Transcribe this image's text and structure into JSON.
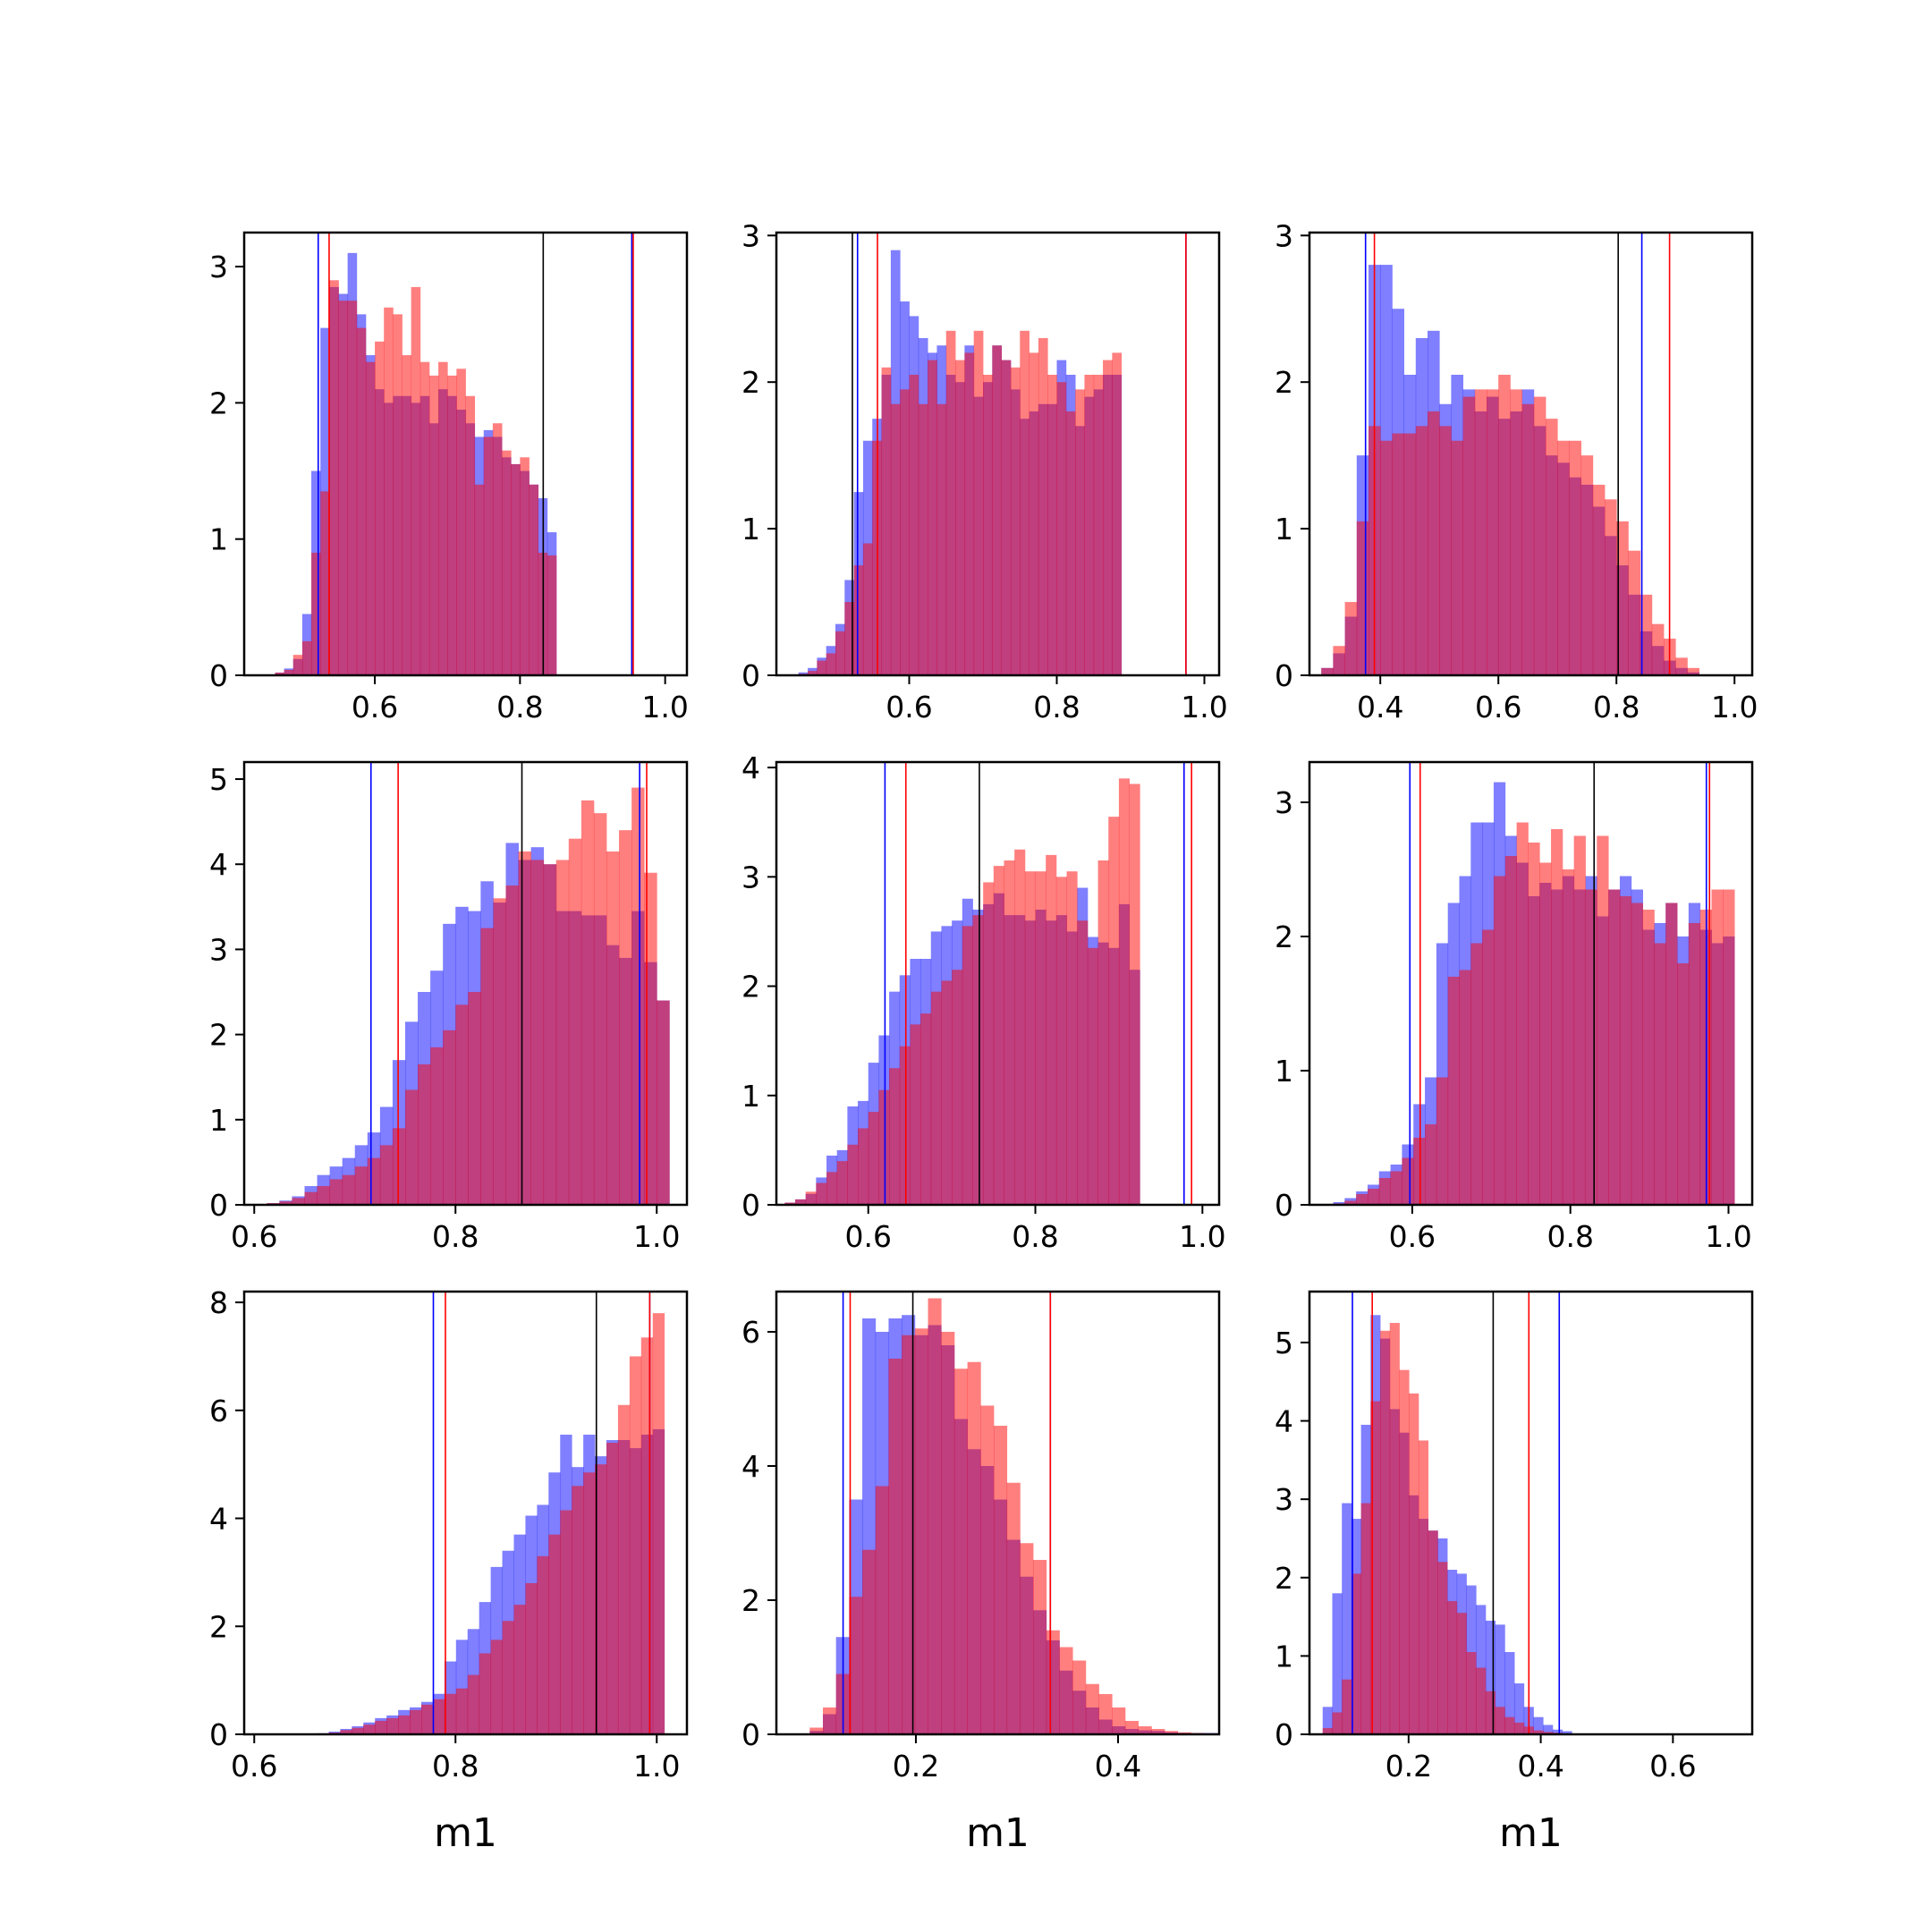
{
  "chart_data": [
    {
      "type": "histogram",
      "xlabel": "",
      "xlim": [
        0.42,
        1.03
      ],
      "ylim": [
        0,
        3.25
      ],
      "xticks": [
        "0.6",
        "0.8",
        "1.0"
      ],
      "yticks": [
        "0",
        "1",
        "2",
        "3"
      ],
      "bins": {
        "start": 0.4625,
        "width": 0.0125
      },
      "series": [
        {
          "color": "#0000ff",
          "values": [
            0.02,
            0.05,
            0.12,
            0.45,
            1.5,
            2.55,
            2.85,
            2.8,
            3.1,
            2.65,
            2.35,
            2.1,
            2.0,
            2.05,
            2.05,
            2.0,
            2.05,
            1.85,
            2.1,
            2.05,
            1.95,
            1.85,
            1.75,
            1.8,
            1.75,
            1.6,
            1.55,
            1.5,
            1.4,
            1.3,
            1.05
          ],
          "markers": [
            0.522,
            0.954
          ]
        },
        {
          "color": "#ff0000",
          "values": [
            0.02,
            0.04,
            0.15,
            0.25,
            0.9,
            1.35,
            2.9,
            2.75,
            2.75,
            2.55,
            2.3,
            2.45,
            2.7,
            2.65,
            2.35,
            2.85,
            2.3,
            2.2,
            2.3,
            2.2,
            2.25,
            2.05,
            1.4,
            1.75,
            1.85,
            1.65,
            1.55,
            1.6,
            1.4,
            0.9,
            0.88
          ],
          "markers": [
            0.537,
            0.956
          ]
        }
      ],
      "median": 0.832
    },
    {
      "type": "histogram",
      "xlabel": "",
      "xlim": [
        0.42,
        1.02
      ],
      "ylim": [
        0,
        3.02
      ],
      "xticks": [
        "0.6",
        "0.8",
        "1.0"
      ],
      "yticks": [
        "0",
        "1",
        "2",
        "3"
      ],
      "bins": {
        "start": 0.45,
        "width": 0.0125
      },
      "series": [
        {
          "color": "#0000ff",
          "values": [
            0.02,
            0.05,
            0.12,
            0.2,
            0.35,
            0.65,
            1.25,
            1.6,
            1.75,
            2.05,
            2.9,
            2.55,
            2.45,
            2.3,
            2.2,
            2.25,
            2.05,
            2.0,
            2.25,
            1.9,
            2.0,
            2.25,
            2.15,
            1.95,
            1.75,
            1.8,
            1.85,
            1.85,
            2.15,
            2.05,
            1.7,
            1.9,
            1.95,
            2.05,
            2.05
          ]
        },
        {
          "color": "#ff0000",
          "values": [
            0.01,
            0.03,
            0.1,
            0.15,
            0.3,
            0.5,
            0.75,
            0.9,
            1.6,
            2.1,
            1.85,
            1.95,
            2.05,
            1.85,
            2.15,
            1.85,
            2.35,
            2.15,
            2.2,
            2.35,
            2.05,
            2.25,
            2.15,
            2.1,
            2.35,
            2.2,
            2.3,
            2.05,
            2.0,
            1.8,
            1.95,
            2.05,
            2.05,
            2.15,
            2.2
          ]
        }
      ],
      "markers_blue": [
        0.53,
        0.975
      ],
      "markers_red": [
        0.557,
        0.975
      ],
      "median": 0.523
    },
    {
      "type": "histogram",
      "xlabel": "",
      "xlim": [
        0.28,
        1.03
      ],
      "ylim": [
        0,
        3.02
      ],
      "xticks": [
        "0.4",
        "0.6",
        "0.8",
        "1.0"
      ],
      "yticks": [
        "0",
        "1",
        "2",
        "3"
      ],
      "bins": {
        "start": 0.3,
        "width": 0.02
      },
      "series": [
        {
          "color": "#0000ff",
          "values": [
            0.05,
            0.15,
            0.4,
            1.5,
            2.8,
            2.8,
            2.5,
            2.05,
            2.3,
            2.35,
            1.85,
            2.05,
            1.95,
            1.8,
            1.9,
            1.75,
            1.8,
            1.95,
            1.7,
            1.5,
            1.45,
            1.35,
            1.3,
            1.15,
            0.95,
            0.75,
            0.55,
            0.3,
            0.2,
            0.1,
            0.05,
            0.02
          ]
        },
        {
          "color": "#ff0000",
          "values": [
            0.05,
            0.2,
            0.5,
            1.05,
            1.7,
            1.6,
            1.65,
            1.65,
            1.7,
            1.8,
            1.7,
            1.6,
            1.9,
            1.95,
            1.95,
            2.05,
            1.95,
            1.85,
            1.9,
            1.75,
            1.6,
            1.6,
            1.5,
            1.3,
            1.2,
            1.05,
            0.85,
            0.55,
            0.35,
            0.25,
            0.12,
            0.05
          ]
        }
      ],
      "markers_blue": [
        0.375,
        0.843
      ],
      "markers_red": [
        0.39,
        0.89
      ],
      "median": 0.803
    },
    {
      "type": "histogram",
      "xlabel": "",
      "xlim": [
        0.59,
        1.03
      ],
      "ylim": [
        0,
        5.2
      ],
      "xticks": [
        "0.6",
        "0.8",
        "1.0"
      ],
      "yticks": [
        "0",
        "1",
        "2",
        "3",
        "4",
        "5"
      ],
      "bins": {
        "start": 0.6125,
        "width": 0.0125
      },
      "series": [
        {
          "color": "#0000ff",
          "values": [
            0.02,
            0.05,
            0.1,
            0.22,
            0.35,
            0.45,
            0.55,
            0.7,
            0.85,
            1.15,
            1.7,
            2.15,
            2.5,
            2.75,
            3.3,
            3.5,
            3.45,
            3.8,
            3.55,
            4.25,
            4.05,
            4.2,
            4.0,
            3.45,
            3.45,
            3.4,
            3.4,
            3.05,
            2.9,
            3.45,
            2.85,
            2.4
          ]
        },
        {
          "color": "#ff0000",
          "values": [
            0.02,
            0.04,
            0.08,
            0.15,
            0.22,
            0.3,
            0.35,
            0.45,
            0.55,
            0.7,
            0.9,
            1.35,
            1.65,
            1.85,
            2.05,
            2.35,
            2.5,
            3.25,
            3.6,
            3.75,
            4.15,
            4.05,
            4.0,
            4.05,
            4.3,
            4.75,
            4.6,
            4.15,
            4.4,
            4.9,
            3.9,
            2.4
          ]
        }
      ],
      "markers_blue": [
        0.716,
        0.983
      ],
      "markers_red": [
        0.743,
        0.99
      ],
      "median": 0.866
    },
    {
      "type": "histogram",
      "xlabel": "",
      "xlim": [
        0.49,
        1.02
      ],
      "ylim": [
        0,
        4.05
      ],
      "xticks": [
        "0.6",
        "0.8",
        "1.0"
      ],
      "yticks": [
        "0",
        "1",
        "2",
        "3",
        "4"
      ],
      "bins": {
        "start": 0.5,
        "width": 0.0125
      },
      "series": [
        {
          "color": "#0000ff",
          "values": [
            0.02,
            0.05,
            0.1,
            0.25,
            0.45,
            0.5,
            0.9,
            0.95,
            1.3,
            1.55,
            1.95,
            2.1,
            2.25,
            2.25,
            2.5,
            2.55,
            2.6,
            2.8,
            2.7,
            2.75,
            2.85,
            2.65,
            2.65,
            2.6,
            2.7,
            2.6,
            2.65,
            2.5,
            2.9,
            2.45,
            2.4,
            2.35,
            2.75,
            2.15
          ]
        },
        {
          "color": "#ff0000",
          "values": [
            0.02,
            0.05,
            0.12,
            0.2,
            0.3,
            0.4,
            0.55,
            0.7,
            0.85,
            1.05,
            1.25,
            1.45,
            1.65,
            1.75,
            1.95,
            2.05,
            2.15,
            2.55,
            2.65,
            2.95,
            3.1,
            3.15,
            3.25,
            3.05,
            3.05,
            3.2,
            3.0,
            3.05,
            2.6,
            2.35,
            3.15,
            3.55,
            3.9,
            3.85
          ]
        }
      ],
      "markers_blue": [
        0.62,
        0.978
      ],
      "markers_red": [
        0.645,
        0.987
      ],
      "median": 0.733
    },
    {
      "type": "histogram",
      "xlabel": "",
      "xlim": [
        0.47,
        1.03
      ],
      "ylim": [
        0,
        3.3
      ],
      "xticks": [
        "0.6",
        "0.8",
        "1.0"
      ],
      "yticks": [
        "0",
        "1",
        "2",
        "3"
      ],
      "bins": {
        "start": 0.5,
        "width": 0.0145
      },
      "series": [
        {
          "color": "#0000ff",
          "values": [
            0.02,
            0.05,
            0.1,
            0.15,
            0.25,
            0.3,
            0.45,
            0.75,
            0.95,
            1.95,
            2.25,
            2.45,
            2.85,
            2.85,
            3.15,
            2.75,
            2.55,
            2.3,
            2.4,
            2.35,
            2.45,
            2.35,
            2.45,
            2.15,
            2.35,
            2.45,
            2.35,
            2.05,
            2.1,
            2.25,
            2.0,
            2.25,
            2.05,
            1.95,
            2.0
          ]
        },
        {
          "color": "#ff0000",
          "values": [
            0.01,
            0.03,
            0.08,
            0.12,
            0.2,
            0.25,
            0.35,
            0.5,
            0.6,
            0.95,
            1.7,
            1.75,
            1.95,
            2.05,
            2.45,
            2.6,
            2.85,
            2.7,
            2.55,
            2.8,
            2.5,
            2.75,
            2.35,
            2.75,
            2.35,
            2.3,
            2.25,
            2.2,
            1.95,
            2.25,
            1.8,
            2.1,
            2.2,
            2.35,
            2.35
          ]
        }
      ],
      "markers_blue": [
        0.597,
        0.972
      ],
      "markers_red": [
        0.61,
        0.976
      ],
      "median": 0.83
    },
    {
      "type": "histogram",
      "xlabel": "m1",
      "xlim": [
        0.59,
        1.03
      ],
      "ylim": [
        0,
        8.2
      ],
      "xticks": [
        "0.6",
        "0.8",
        "1.0"
      ],
      "yticks": [
        "0",
        "2",
        "4",
        "6",
        "8"
      ],
      "bins": {
        "start": 0.6625,
        "width": 0.0115
      },
      "series": [
        {
          "color": "#0000ff",
          "values": [
            0.02,
            0.05,
            0.1,
            0.15,
            0.22,
            0.3,
            0.35,
            0.45,
            0.5,
            0.6,
            0.75,
            1.35,
            1.75,
            1.95,
            2.45,
            3.1,
            3.4,
            3.7,
            4.05,
            4.25,
            4.85,
            5.55,
            4.95,
            5.55,
            5.15,
            5.45,
            5.45,
            5.3,
            5.55,
            5.65
          ]
        },
        {
          "color": "#ff0000",
          "values": [
            0.01,
            0.03,
            0.08,
            0.12,
            0.18,
            0.25,
            0.3,
            0.35,
            0.45,
            0.55,
            0.65,
            0.75,
            0.85,
            1.1,
            1.5,
            1.75,
            2.1,
            2.4,
            2.8,
            3.3,
            3.7,
            4.15,
            4.6,
            4.85,
            5.0,
            5.4,
            6.1,
            7.0,
            7.35,
            7.8
          ]
        }
      ],
      "markers_blue": [
        0.778,
        0.993
      ],
      "markers_red": [
        0.79,
        0.993
      ],
      "median": 0.94
    },
    {
      "type": "histogram",
      "xlabel": "m1",
      "xlim": [
        0.062,
        0.5
      ],
      "ylim": [
        0,
        6.6
      ],
      "xticks": [
        "0.2",
        "0.4"
      ],
      "yticks": [
        "0",
        "2",
        "4",
        "6"
      ],
      "bins": {
        "start": 0.095,
        "width": 0.013
      },
      "series": [
        {
          "color": "#0000ff",
          "values": [
            0.05,
            0.3,
            1.45,
            3.5,
            6.2,
            6.0,
            6.2,
            6.25,
            5.95,
            6.1,
            5.8,
            4.7,
            4.25,
            4.0,
            3.5,
            2.9,
            2.35,
            1.85,
            1.4,
            0.95,
            0.65,
            0.4,
            0.22,
            0.12,
            0.08,
            0.06,
            0.05,
            0.03,
            0.02,
            0.02,
            0.02
          ]
        },
        {
          "color": "#ff0000",
          "values": [
            0.1,
            0.4,
            0.9,
            2.05,
            2.75,
            3.7,
            5.6,
            5.95,
            6.05,
            6.5,
            6.0,
            5.45,
            5.55,
            4.9,
            4.6,
            3.75,
            2.85,
            2.6,
            1.55,
            1.3,
            1.1,
            0.75,
            0.6,
            0.4,
            0.2,
            0.12,
            0.08,
            0.05,
            0.03,
            0.02,
            0.01
          ]
        }
      ],
      "markers_blue": [
        0.128,
        0.333
      ],
      "markers_red": [
        0.135,
        0.333
      ],
      "median": 0.197
    },
    {
      "type": "histogram",
      "xlabel": "m1",
      "xlim": [
        0.05,
        0.72
      ],
      "ylim": [
        0,
        5.65
      ],
      "xticks": [
        "0.2",
        "0.4",
        "0.6"
      ],
      "yticks": [
        "0",
        "1",
        "2",
        "3",
        "4",
        "5"
      ],
      "bins": {
        "start": 0.07,
        "width": 0.0145
      },
      "series": [
        {
          "color": "#0000ff",
          "values": [
            0.35,
            1.8,
            2.95,
            2.75,
            3.95,
            5.35,
            5.05,
            4.15,
            3.85,
            3.05,
            2.75,
            2.6,
            2.5,
            2.1,
            2.05,
            1.9,
            1.65,
            1.45,
            1.4,
            1.05,
            0.65,
            0.35,
            0.22,
            0.12,
            0.06,
            0.04
          ]
        },
        {
          "color": "#ff0000",
          "values": [
            0.08,
            0.28,
            0.7,
            2.05,
            2.95,
            4.25,
            5.15,
            5.25,
            4.65,
            4.35,
            3.75,
            2.6,
            2.2,
            1.7,
            1.55,
            1.05,
            0.85,
            0.55,
            0.35,
            0.22,
            0.15,
            0.1,
            0.05,
            0.03,
            0.02,
            0.01
          ]
        }
      ],
      "markers_blue": [
        0.115,
        0.428
      ],
      "markers_red": [
        0.145,
        0.382
      ],
      "median": 0.328
    }
  ]
}
